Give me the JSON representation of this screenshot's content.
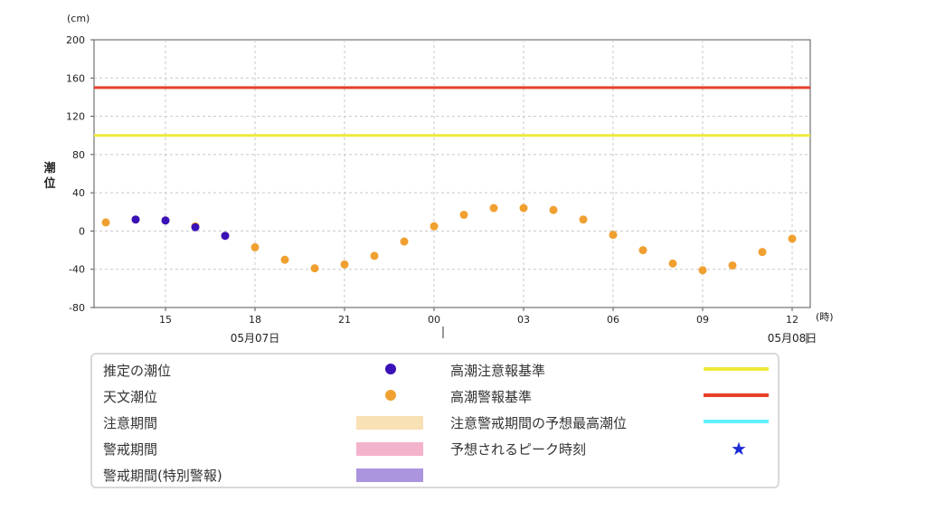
{
  "chart_data": {
    "type": "scatter",
    "unit_label": "(cm)",
    "x_unit_label": "(時)",
    "ylabel": "潮位",
    "ylim": [
      -80,
      200
    ],
    "yticks": [
      -80,
      -40,
      0,
      40,
      80,
      120,
      160,
      200
    ],
    "xlim_hours": [
      12,
      36
    ],
    "xticks": [
      {
        "h": 15,
        "label": "15"
      },
      {
        "h": 18,
        "label": "18"
      },
      {
        "h": 21,
        "label": "21"
      },
      {
        "h": 24,
        "label": "00"
      },
      {
        "h": 27,
        "label": "03"
      },
      {
        "h": 30,
        "label": "06"
      },
      {
        "h": 33,
        "label": "09"
      },
      {
        "h": 36,
        "label": "12"
      }
    ],
    "date_labels": [
      {
        "h": 18,
        "label": "05月07日"
      },
      {
        "h": 36,
        "label": "05月08日"
      }
    ],
    "grid": true,
    "thresholds": [
      {
        "name": "高潮注意報基準",
        "value": 100,
        "color": "#eeea3a"
      },
      {
        "name": "高潮警報基準",
        "value": 150,
        "color": "#e64027"
      }
    ],
    "series": [
      {
        "name": "天文潮位",
        "color": "#f0a030",
        "points": [
          [
            13,
            9
          ],
          [
            14,
            12
          ],
          [
            15,
            11
          ],
          [
            16,
            5
          ],
          [
            17,
            -5
          ],
          [
            18,
            -17
          ],
          [
            19,
            -30
          ],
          [
            20,
            -39
          ],
          [
            21,
            -35
          ],
          [
            22,
            -26
          ],
          [
            23,
            -11
          ],
          [
            24,
            5
          ],
          [
            25,
            17
          ],
          [
            26,
            24
          ],
          [
            27,
            24
          ],
          [
            28,
            22
          ],
          [
            29,
            12
          ],
          [
            30,
            -4
          ],
          [
            31,
            -20
          ],
          [
            32,
            -34
          ],
          [
            33,
            -41
          ],
          [
            34,
            -36
          ],
          [
            35,
            -22
          ],
          [
            36,
            -8
          ]
        ]
      },
      {
        "name": "推定の潮位",
        "color": "#3a10b8",
        "points": [
          [
            14,
            12
          ],
          [
            15,
            11
          ],
          [
            16,
            4
          ],
          [
            17,
            -5
          ]
        ]
      }
    ]
  },
  "legend": {
    "estimated": {
      "label": "推定の潮位",
      "color": "#3a10b8"
    },
    "astronomical": {
      "label": "天文潮位",
      "color": "#f0a030"
    },
    "caution_period": {
      "label": "注意期間",
      "color": "#f8e1b5"
    },
    "warning_period": {
      "label": "警戒期間",
      "color": "#f4b3cc"
    },
    "special_warning_period": {
      "label": "警戒期間(特別警報)",
      "color": "#ab95de"
    },
    "advisory_level": {
      "label": "高潮注意報基準",
      "color": "#eeea3a"
    },
    "warning_level": {
      "label": "高潮警報基準",
      "color": "#e64027"
    },
    "predicted_max": {
      "label": "注意警戒期間の予想最高潮位",
      "color": "#5ff0ff"
    },
    "predicted_peak": {
      "label": "予想されるピーク時刻",
      "icon": "star-icon",
      "symbol": "★",
      "color": "#1a2bd6"
    }
  }
}
